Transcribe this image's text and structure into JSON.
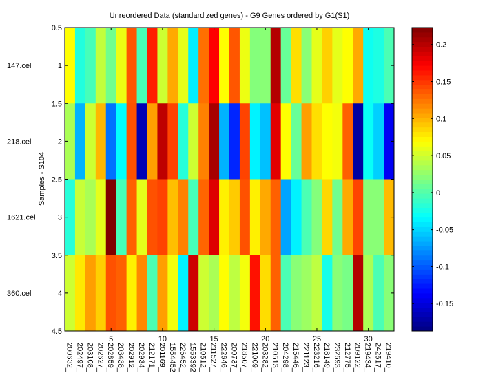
{
  "chart_data": {
    "type": "heatmap",
    "title": "Unreordered Data (standardized genes) - G9 Genes ordered by G1(S1)",
    "ylabel": "Samples - S104",
    "xlabel": "",
    "xlim": [
      0.5,
      32.5
    ],
    "ylim": [
      0.5,
      4.5
    ],
    "x_ticks": [
      5,
      10,
      15,
      20,
      25,
      30
    ],
    "y_ticks": [
      0.5,
      1,
      1.5,
      2,
      2.5,
      3,
      3.5,
      4,
      4.5
    ],
    "row_labels": [
      "147.cel",
      "218.cel",
      "1621.cel",
      "360.cel"
    ],
    "column_labels": [
      "200632_",
      "202497_",
      "203108_",
      "202627_",
      "202859_",
      "203438_",
      "202912_",
      "202934_",
      "212171_",
      "201169_",
      "1554452",
      "226452_",
      "1553392",
      "210512_",
      "211527_",
      "222646_",
      "200737_",
      "218507_",
      "221009_",
      "203282_",
      "210513_",
      "204298_",
      "215446_",
      "221123_",
      "223216_",
      "218149_",
      "232693_",
      "212775_",
      "209122_",
      "219434_",
      "242517_",
      "219410_"
    ],
    "colormap": "jet",
    "clim": [
      -0.187,
      0.223
    ],
    "colorbar_ticks": [
      0.2,
      0.15,
      0.1,
      0.05,
      0,
      -0.05,
      -0.1,
      -0.15
    ],
    "values": [
      [
        0.069,
        -0.02,
        -0.005,
        0.045,
        0.012,
        0.062,
        0.137,
        -0.005,
        0.16,
        0.049,
        0.104,
        0.059,
        -0.04,
        0.127,
        0.172,
        0.069,
        0.137,
        0.062,
        0.02,
        0.022,
        0.202,
        0.008,
        0.082,
        0.022,
        0.059,
        0.088,
        0.059,
        0.069,
        0.104,
        -0.028,
        -0.022,
        -0.003
      ],
      [
        0.035,
        -0.064,
        0.049,
        0.098,
        -0.09,
        -0.033,
        0.139,
        -0.166,
        0.108,
        0.198,
        0.145,
        -0.018,
        0.049,
        0.12,
        0.207,
        -0.064,
        -0.121,
        0.145,
        -0.038,
        -0.058,
        0.183,
        0.069,
        0.008,
        0.108,
        0.082,
        0.069,
        0.065,
        0.133,
        -0.173,
        -0.03,
        -0.052,
        -0.14
      ],
      [
        -0.018,
        0.047,
        0.035,
        0.059,
        0.223,
        -0.005,
        0.133,
        0.059,
        0.139,
        0.145,
        0.095,
        0.12,
        -0.005,
        0.131,
        0.185,
        0.075,
        0.09,
        0.139,
        0.075,
        0.104,
        0.133,
        -0.07,
        -0.038,
        -0.003,
        0.02,
        0.085,
        0.012,
        0.104,
        0.145,
        0.022,
        0.022,
        0.097
      ],
      [
        0.049,
        0.078,
        0.108,
        0.088,
        0.139,
        0.133,
        0.075,
        0.117,
        -0.003,
        0.108,
        0.065,
        -0.038,
        0.192,
        0.049,
        0.035,
        0.069,
        0.043,
        0.065,
        0.165,
        0.083,
        0.133,
        -0.003,
        0.022,
        0.03,
        0.043,
        -0.024,
        0.022,
        0.015,
        0.202,
        0.035,
        -0.003,
        0.022
      ]
    ]
  }
}
